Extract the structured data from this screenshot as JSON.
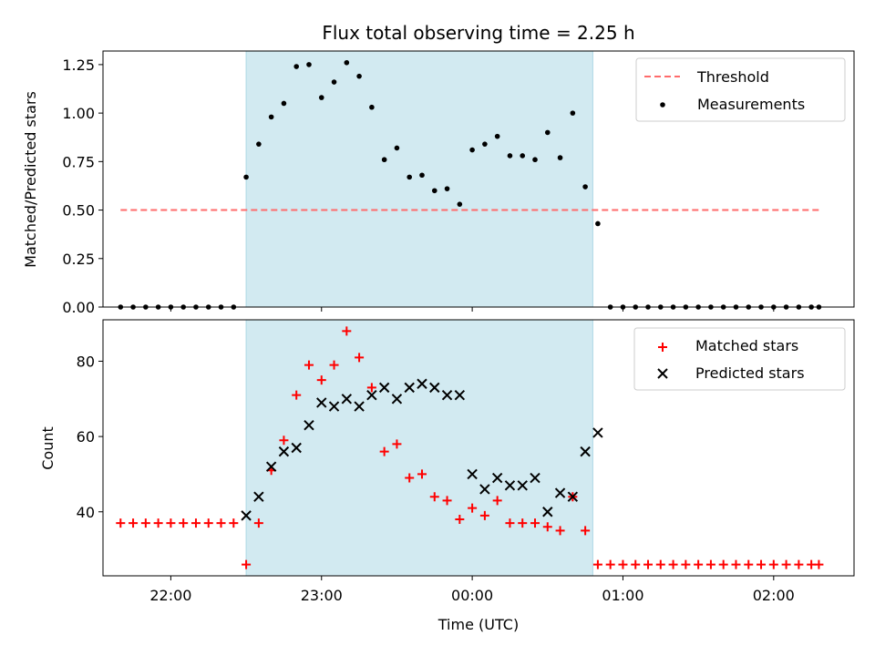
{
  "title": "Flux total observing time = 2.25 h",
  "colors": {
    "shade": "#add8e6",
    "threshold": "#ff6b6b",
    "measurement": "#000000",
    "matched": "#ff0000",
    "predicted": "#000000"
  },
  "chart_data": [
    {
      "type": "scatter",
      "panel": "top",
      "ylabel": "Matched/Predicted stars",
      "xlabel": "",
      "ylim": [
        0,
        1.32
      ],
      "yticks": [
        0.0,
        0.25,
        0.5,
        0.75,
        1.0,
        1.25
      ],
      "ytick_labels": [
        "0.00",
        "0.25",
        "0.50",
        "0.75",
        "1.00",
        "1.25"
      ],
      "shaded_span": [
        "22:30",
        "00:48"
      ],
      "legend": {
        "placement": "top-right",
        "entries": [
          "Threshold",
          "Measurements"
        ]
      },
      "series": [
        {
          "name": "Threshold",
          "kind": "dashed-line",
          "x": [
            "21:40",
            "02:18"
          ],
          "y": [
            0.5,
            0.5
          ]
        },
        {
          "name": "Measurements",
          "kind": "dot",
          "x": [
            "21:40",
            "21:45",
            "21:50",
            "21:55",
            "22:00",
            "22:05",
            "22:10",
            "22:15",
            "22:20",
            "22:25",
            "22:30",
            "22:35",
            "22:40",
            "22:45",
            "22:50",
            "22:55",
            "23:00",
            "23:05",
            "23:10",
            "23:15",
            "23:20",
            "23:25",
            "23:30",
            "23:35",
            "23:40",
            "23:45",
            "23:50",
            "23:55",
            "00:00",
            "00:05",
            "00:10",
            "00:15",
            "00:20",
            "00:25",
            "00:30",
            "00:35",
            "00:40",
            "00:45",
            "00:50",
            "00:55",
            "01:00",
            "01:05",
            "01:10",
            "01:15",
            "01:20",
            "01:25",
            "01:30",
            "01:35",
            "01:40",
            "01:45",
            "01:50",
            "01:55",
            "02:00",
            "02:05",
            "02:10",
            "02:15",
            "02:18"
          ],
          "y": [
            0,
            0,
            0,
            0,
            0,
            0,
            0,
            0,
            0,
            0,
            0.67,
            0.84,
            0.98,
            1.05,
            1.24,
            1.25,
            1.08,
            1.16,
            1.26,
            1.19,
            1.03,
            0.76,
            0.82,
            0.67,
            0.68,
            0.6,
            0.61,
            0.53,
            0.81,
            0.84,
            0.88,
            0.78,
            0.78,
            0.76,
            0.9,
            0.77,
            1.0,
            0.62,
            0.43,
            0,
            0,
            0,
            0,
            0,
            0,
            0,
            0,
            0,
            0,
            0,
            0,
            0,
            0,
            0,
            0,
            0,
            0
          ]
        }
      ]
    },
    {
      "type": "scatter",
      "panel": "bottom",
      "ylabel": "Count",
      "xlabel": "Time (UTC)",
      "ylim": [
        23,
        91
      ],
      "yticks": [
        40,
        60,
        80
      ],
      "ytick_labels": [
        "40",
        "60",
        "80"
      ],
      "xlim": [
        "21:33",
        "02:32"
      ],
      "xticks": [
        "22:00",
        "23:00",
        "00:00",
        "01:00",
        "02:00"
      ],
      "shaded_span": [
        "22:30",
        "00:48"
      ],
      "legend": {
        "placement": "top-right",
        "entries": [
          "Matched stars",
          "Predicted stars"
        ]
      },
      "series": [
        {
          "name": "Matched stars",
          "kind": "plus",
          "x": [
            "21:40",
            "21:45",
            "21:50",
            "21:55",
            "22:00",
            "22:05",
            "22:10",
            "22:15",
            "22:20",
            "22:25",
            "22:30",
            "22:35",
            "22:40",
            "22:45",
            "22:50",
            "22:55",
            "23:00",
            "23:05",
            "23:10",
            "23:15",
            "23:20",
            "23:25",
            "23:30",
            "23:35",
            "23:40",
            "23:45",
            "23:50",
            "23:55",
            "00:00",
            "00:05",
            "00:10",
            "00:15",
            "00:20",
            "00:25",
            "00:30",
            "00:35",
            "00:40",
            "00:45",
            "00:50",
            "00:55",
            "01:00",
            "01:05",
            "01:10",
            "01:15",
            "01:20",
            "01:25",
            "01:30",
            "01:35",
            "01:40",
            "01:45",
            "01:50",
            "01:55",
            "02:00",
            "02:05",
            "02:10",
            "02:15",
            "02:18"
          ],
          "y": [
            37,
            37,
            37,
            37,
            37,
            37,
            37,
            37,
            37,
            37,
            26,
            37,
            51,
            59,
            71,
            79,
            75,
            79,
            88,
            81,
            73,
            56,
            58,
            49,
            50,
            44,
            43,
            38,
            41,
            39,
            43,
            37,
            37,
            37,
            36,
            35,
            44,
            35,
            26,
            26,
            26,
            26,
            26,
            26,
            26,
            26,
            26,
            26,
            26,
            26,
            26,
            26,
            26,
            26,
            26,
            26,
            26
          ]
        },
        {
          "name": "Predicted stars",
          "kind": "x",
          "x": [
            "22:30",
            "22:35",
            "22:40",
            "22:45",
            "22:50",
            "22:55",
            "23:00",
            "23:05",
            "23:10",
            "23:15",
            "23:20",
            "23:25",
            "23:30",
            "23:35",
            "23:40",
            "23:45",
            "23:50",
            "23:55",
            "00:00",
            "00:05",
            "00:10",
            "00:15",
            "00:20",
            "00:25",
            "00:30",
            "00:35",
            "00:40",
            "00:45",
            "00:50"
          ],
          "y": [
            39,
            44,
            52,
            56,
            57,
            63,
            69,
            68,
            70,
            68,
            71,
            73,
            70,
            73,
            74,
            73,
            71,
            71,
            50,
            46,
            49,
            47,
            47,
            49,
            40,
            45,
            44,
            56,
            61
          ]
        }
      ]
    }
  ]
}
